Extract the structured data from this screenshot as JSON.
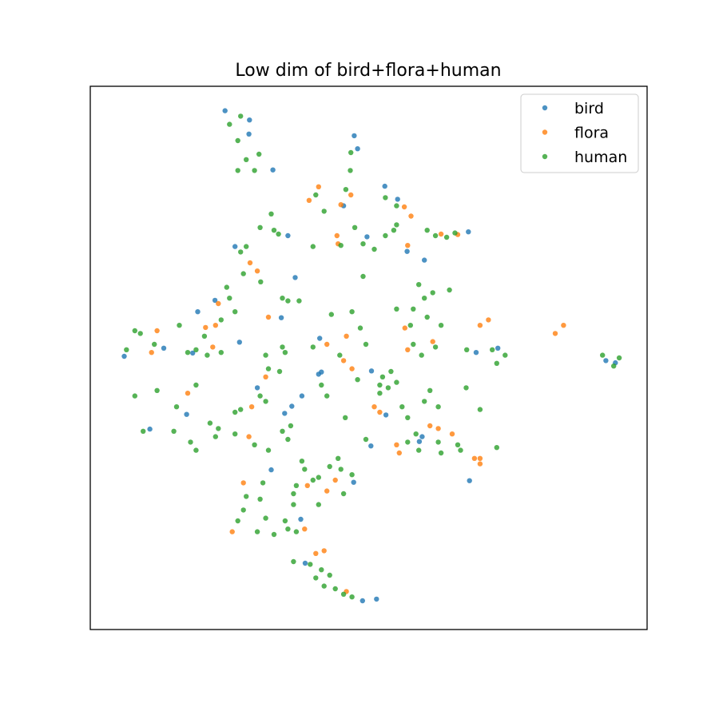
{
  "chart_data": {
    "type": "scatter",
    "title": "Low dim of bird+flora+human",
    "xlabel": "",
    "ylabel": "",
    "xlim": [
      0,
      100
    ],
    "ylim": [
      0,
      100
    ],
    "grid": false,
    "axis_ticks": false,
    "legend_position": "top-right",
    "series": [
      {
        "name": "bird",
        "color": "#1f77b4",
        "points": [
          [
            24.2,
            95.5
          ],
          [
            28.6,
            93.8
          ],
          [
            28.5,
            91.2
          ],
          [
            32.8,
            84.6
          ],
          [
            47.4,
            90.9
          ],
          [
            48.0,
            88.5
          ],
          [
            52.9,
            81.6
          ],
          [
            55.2,
            79.2
          ],
          [
            67.9,
            73.2
          ],
          [
            49.7,
            72.3
          ],
          [
            56.9,
            69.6
          ],
          [
            36.8,
            64.8
          ],
          [
            22.4,
            60.6
          ],
          [
            19.3,
            58.5
          ],
          [
            13.2,
            51.8
          ],
          [
            6.1,
            50.3
          ],
          [
            18.4,
            50.9
          ],
          [
            26.8,
            52.9
          ],
          [
            34.3,
            57.4
          ],
          [
            41.2,
            53.6
          ],
          [
            50.5,
            47.6
          ],
          [
            41.5,
            47.4
          ],
          [
            69.3,
            51.0
          ],
          [
            73.2,
            51.8
          ],
          [
            94.3,
            49.1
          ],
          [
            92.6,
            49.5
          ],
          [
            17.3,
            39.6
          ],
          [
            10.7,
            36.9
          ],
          [
            34.9,
            39.8
          ],
          [
            36.2,
            41.1
          ],
          [
            53.1,
            39.5
          ],
          [
            50.4,
            33.8
          ],
          [
            59.6,
            35.5
          ],
          [
            59.1,
            34.6
          ],
          [
            32.5,
            29.4
          ],
          [
            47.3,
            27.1
          ],
          [
            37.8,
            20.3
          ],
          [
            38.6,
            12.2
          ],
          [
            48.9,
            5.3
          ],
          [
            51.4,
            5.6
          ],
          [
            68.1,
            27.4
          ],
          [
            41.0,
            47.0
          ],
          [
            35.5,
            72.5
          ],
          [
            45.5,
            78.0
          ],
          [
            60.0,
            68.0
          ],
          [
            26.0,
            70.5
          ],
          [
            38.0,
            43.0
          ],
          [
            30.0,
            44.5
          ]
        ]
      },
      {
        "name": "flora",
        "color": "#ff7f0e",
        "points": [
          [
            39.3,
            79.0
          ],
          [
            41.0,
            81.5
          ],
          [
            45.0,
            78.2
          ],
          [
            46.8,
            80.0
          ],
          [
            56.4,
            77.8
          ],
          [
            57.6,
            76.1
          ],
          [
            44.3,
            72.5
          ],
          [
            44.5,
            71.0
          ],
          [
            63.0,
            72.8
          ],
          [
            66.0,
            72.7
          ],
          [
            57.0,
            70.7
          ],
          [
            28.7,
            67.5
          ],
          [
            30.0,
            66.0
          ],
          [
            23.0,
            60.0
          ],
          [
            22.5,
            56.0
          ],
          [
            12.0,
            55.0
          ],
          [
            20.7,
            55.6
          ],
          [
            22.0,
            52.0
          ],
          [
            11.0,
            51.0
          ],
          [
            32.0,
            57.5
          ],
          [
            42.5,
            52.5
          ],
          [
            46.0,
            54.0
          ],
          [
            45.5,
            49.5
          ],
          [
            56.5,
            55.5
          ],
          [
            57.0,
            51.5
          ],
          [
            71.5,
            57.0
          ],
          [
            70.0,
            56.0
          ],
          [
            85.0,
            56.0
          ],
          [
            83.5,
            54.5
          ],
          [
            17.5,
            43.5
          ],
          [
            29.0,
            41.0
          ],
          [
            51.0,
            41.0
          ],
          [
            52.0,
            40.0
          ],
          [
            55.0,
            34.0
          ],
          [
            55.5,
            32.5
          ],
          [
            61.0,
            37.5
          ],
          [
            62.5,
            37.0
          ],
          [
            65.0,
            36.0
          ],
          [
            69.0,
            31.5
          ],
          [
            70.0,
            31.5
          ],
          [
            70.0,
            30.5
          ],
          [
            44.0,
            27.5
          ],
          [
            42.5,
            25.5
          ],
          [
            39.0,
            26.5
          ],
          [
            38.5,
            18.5
          ],
          [
            40.5,
            14.0
          ],
          [
            42.0,
            14.5
          ],
          [
            46.0,
            7.0
          ],
          [
            27.5,
            27.0
          ],
          [
            25.5,
            18.0
          ],
          [
            47.0,
            48.0
          ],
          [
            61.5,
            53.0
          ],
          [
            31.5,
            46.5
          ],
          [
            28.5,
            35.5
          ]
        ]
      },
      {
        "name": "human",
        "color": "#2ca02c",
        "points": [
          [
            25.0,
            93.0
          ],
          [
            27.0,
            94.5
          ],
          [
            26.5,
            90.0
          ],
          [
            28.0,
            86.5
          ],
          [
            29.5,
            84.5
          ],
          [
            26.5,
            84.5
          ],
          [
            30.3,
            87.5
          ],
          [
            46.8,
            87.8
          ],
          [
            46.7,
            84.5
          ],
          [
            45.9,
            81.0
          ],
          [
            40.5,
            80.0
          ],
          [
            53.0,
            79.5
          ],
          [
            55.0,
            78.0
          ],
          [
            42.0,
            77.0
          ],
          [
            40.0,
            70.5
          ],
          [
            45.0,
            70.7
          ],
          [
            49.0,
            71.0
          ],
          [
            51.0,
            70.0
          ],
          [
            53.0,
            72.5
          ],
          [
            62.0,
            72.5
          ],
          [
            64.0,
            72.2
          ],
          [
            32.5,
            76.5
          ],
          [
            33.0,
            73.5
          ],
          [
            33.8,
            72.8
          ],
          [
            27.0,
            69.5
          ],
          [
            27.5,
            65.5
          ],
          [
            30.6,
            64.0
          ],
          [
            34.5,
            61.0
          ],
          [
            35.5,
            60.5
          ],
          [
            37.5,
            60.5
          ],
          [
            26.0,
            58.5
          ],
          [
            23.5,
            57.0
          ],
          [
            20.5,
            54.0
          ],
          [
            23.5,
            51.0
          ],
          [
            16.0,
            56.0
          ],
          [
            8.0,
            55.0
          ],
          [
            9.0,
            54.5
          ],
          [
            11.5,
            52.5
          ],
          [
            6.5,
            51.5
          ],
          [
            17.5,
            51.0
          ],
          [
            19.0,
            51.5
          ],
          [
            21.0,
            50.5
          ],
          [
            31.5,
            50.5
          ],
          [
            34.5,
            52.0
          ],
          [
            35.0,
            51.0
          ],
          [
            40.0,
            52.0
          ],
          [
            43.3,
            58.0
          ],
          [
            47.0,
            58.5
          ],
          [
            48.5,
            55.5
          ],
          [
            49.5,
            52.5
          ],
          [
            58.0,
            59.0
          ],
          [
            55.0,
            59.0
          ],
          [
            57.5,
            56.0
          ],
          [
            60.5,
            57.5
          ],
          [
            58.0,
            52.5
          ],
          [
            62.0,
            52.0
          ],
          [
            59.5,
            50.5
          ],
          [
            55.0,
            45.5
          ],
          [
            52.0,
            45.0
          ],
          [
            53.5,
            44.5
          ],
          [
            67.6,
            51.5
          ],
          [
            72.2,
            51.5
          ],
          [
            74.5,
            50.5
          ],
          [
            73.0,
            49.0
          ],
          [
            92.0,
            50.5
          ],
          [
            94.0,
            48.5
          ],
          [
            95.0,
            50.0
          ],
          [
            8.0,
            43.0
          ],
          [
            12.0,
            44.0
          ],
          [
            15.5,
            41.0
          ],
          [
            9.5,
            36.5
          ],
          [
            15.0,
            36.5
          ],
          [
            18.0,
            34.5
          ],
          [
            19.0,
            33.0
          ],
          [
            21.5,
            38.0
          ],
          [
            23.0,
            37.0
          ],
          [
            22.5,
            35.5
          ],
          [
            26.0,
            36.0
          ],
          [
            30.5,
            43.0
          ],
          [
            31.5,
            42.0
          ],
          [
            29.5,
            34.0
          ],
          [
            32.0,
            33.0
          ],
          [
            35.5,
            35.0
          ],
          [
            36.0,
            37.5
          ],
          [
            45.8,
            39.0
          ],
          [
            52.0,
            43.5
          ],
          [
            56.0,
            41.0
          ],
          [
            57.0,
            39.0
          ],
          [
            58.5,
            36.0
          ],
          [
            57.0,
            34.5
          ],
          [
            59.0,
            33.0
          ],
          [
            62.5,
            34.5
          ],
          [
            63.0,
            32.5
          ],
          [
            66.0,
            34.0
          ],
          [
            66.5,
            33.0
          ],
          [
            73.0,
            33.5
          ],
          [
            38.5,
            29.5
          ],
          [
            40.0,
            27.5
          ],
          [
            41.0,
            28.0
          ],
          [
            43.0,
            30.0
          ],
          [
            45.0,
            29.5
          ],
          [
            47.0,
            28.5
          ],
          [
            36.5,
            23.0
          ],
          [
            36.5,
            25.0
          ],
          [
            37.0,
            26.5
          ],
          [
            41.0,
            23.0
          ],
          [
            45.5,
            25.0
          ],
          [
            27.5,
            22.0
          ],
          [
            28.0,
            24.5
          ],
          [
            30.5,
            24.0
          ],
          [
            31.5,
            20.5
          ],
          [
            35.0,
            20.0
          ],
          [
            35.5,
            18.5
          ],
          [
            37.0,
            18.0
          ],
          [
            33.0,
            17.5
          ],
          [
            36.5,
            12.5
          ],
          [
            39.5,
            12.0
          ],
          [
            41.5,
            11.0
          ],
          [
            43.0,
            10.0
          ],
          [
            44.0,
            7.5
          ],
          [
            45.5,
            6.5
          ],
          [
            47.0,
            6.0
          ],
          [
            42.0,
            8.0
          ],
          [
            40.5,
            9.5
          ],
          [
            26.5,
            20.0
          ],
          [
            30.0,
            18.0
          ],
          [
            38.0,
            31.0
          ],
          [
            34.5,
            36.5
          ],
          [
            32.0,
            48.0
          ],
          [
            27.0,
            40.5
          ],
          [
            42.5,
            43.0
          ],
          [
            62.5,
            41.0
          ],
          [
            67.5,
            44.5
          ],
          [
            70.0,
            40.5
          ],
          [
            59.0,
            63.5
          ],
          [
            61.5,
            62.0
          ],
          [
            60.0,
            61.0
          ],
          [
            63.0,
            56.0
          ],
          [
            61.0,
            44.0
          ],
          [
            60.0,
            42.0
          ],
          [
            44.8,
            50.5
          ],
          [
            48.0,
            46.0
          ],
          [
            52.5,
            46.5
          ],
          [
            54.0,
            47.5
          ],
          [
            25.0,
            61.0
          ],
          [
            24.5,
            63.0
          ],
          [
            28.0,
            70.5
          ],
          [
            30.5,
            74.0
          ],
          [
            55.0,
            74.5
          ],
          [
            54.5,
            73.5
          ],
          [
            64.5,
            62.5
          ],
          [
            47.5,
            74.0
          ],
          [
            60.5,
            73.5
          ],
          [
            65.5,
            73.0
          ],
          [
            49.0,
            65.0
          ],
          [
            41.5,
            45.0
          ],
          [
            34.0,
            47.5
          ],
          [
            49.5,
            35.0
          ],
          [
            31.0,
            27.0
          ],
          [
            44.5,
            31.5
          ],
          [
            26.0,
            40.0
          ],
          [
            19.0,
            45.0
          ]
        ]
      }
    ]
  }
}
